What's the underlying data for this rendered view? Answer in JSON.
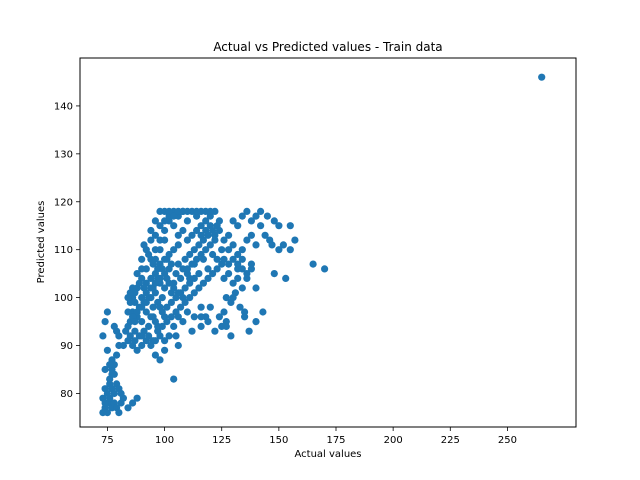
{
  "chart_data": {
    "type": "scatter",
    "title": "Actual vs Predicted values - Train data",
    "xlabel": "Actual values",
    "ylabel": "Predicted values",
    "xlim": [
      63,
      280
    ],
    "ylim": [
      73,
      150
    ],
    "xticks": [
      75,
      100,
      125,
      150,
      175,
      200,
      225,
      250
    ],
    "yticks": [
      80,
      90,
      100,
      110,
      120,
      130,
      140
    ],
    "grid": false,
    "marker_color": "#1f77b4",
    "points": [
      [
        73,
        76
      ],
      [
        74,
        77
      ],
      [
        75,
        76
      ],
      [
        76,
        78
      ],
      [
        77,
        77
      ],
      [
        73,
        79
      ],
      [
        74,
        78
      ],
      [
        76,
        79
      ],
      [
        78,
        78
      ],
      [
        79,
        77
      ],
      [
        80,
        76
      ],
      [
        81,
        78
      ],
      [
        82,
        79
      ],
      [
        84,
        77
      ],
      [
        86,
        78
      ],
      [
        88,
        79
      ],
      [
        74,
        81
      ],
      [
        75,
        80
      ],
      [
        76,
        82
      ],
      [
        77,
        81
      ],
      [
        78,
        80
      ],
      [
        79,
        82
      ],
      [
        80,
        81
      ],
      [
        81,
        80
      ],
      [
        76,
        83
      ],
      [
        77,
        85
      ],
      [
        78,
        84
      ],
      [
        74,
        85
      ],
      [
        75,
        89
      ],
      [
        73,
        92
      ],
      [
        74,
        95
      ],
      [
        75,
        97
      ],
      [
        77,
        87
      ],
      [
        78,
        86
      ],
      [
        79,
        88
      ],
      [
        80,
        90
      ],
      [
        78,
        94
      ],
      [
        79,
        93
      ],
      [
        76,
        86
      ],
      [
        77,
        84
      ],
      [
        84,
        94
      ],
      [
        85,
        95
      ],
      [
        86,
        97
      ],
      [
        87,
        93
      ],
      [
        88,
        96
      ],
      [
        89,
        98
      ],
      [
        90,
        95
      ],
      [
        91,
        99
      ],
      [
        92,
        97
      ],
      [
        93,
        94
      ],
      [
        94,
        100
      ],
      [
        95,
        98
      ],
      [
        96,
        101
      ],
      [
        97,
        99
      ],
      [
        98,
        103
      ],
      [
        99,
        100
      ],
      [
        100,
        102
      ],
      [
        101,
        104
      ],
      [
        102,
        106
      ],
      [
        103,
        101
      ],
      [
        104,
        103
      ],
      [
        105,
        105
      ],
      [
        106,
        107
      ],
      [
        107,
        104
      ],
      [
        108,
        106
      ],
      [
        109,
        108
      ],
      [
        110,
        105
      ],
      [
        111,
        109
      ],
      [
        112,
        107
      ],
      [
        113,
        110
      ],
      [
        114,
        108
      ],
      [
        115,
        111
      ],
      [
        116,
        109
      ],
      [
        117,
        112
      ],
      [
        118,
        110
      ],
      [
        119,
        113
      ],
      [
        120,
        111
      ],
      [
        121,
        114
      ],
      [
        122,
        112
      ],
      [
        123,
        115
      ],
      [
        86,
        100
      ],
      [
        88,
        102
      ],
      [
        90,
        104
      ],
      [
        92,
        106
      ],
      [
        94,
        108
      ],
      [
        96,
        110
      ],
      [
        98,
        112
      ],
      [
        100,
        114
      ],
      [
        102,
        116
      ],
      [
        104,
        118
      ],
      [
        106,
        117
      ],
      [
        108,
        118
      ],
      [
        110,
        116
      ],
      [
        112,
        118
      ],
      [
        114,
        117
      ],
      [
        116,
        115
      ],
      [
        118,
        116
      ],
      [
        120,
        117
      ],
      [
        122,
        118
      ],
      [
        124,
        116
      ],
      [
        87,
        91
      ],
      [
        89,
        92
      ],
      [
        91,
        93
      ],
      [
        93,
        92
      ],
      [
        95,
        91
      ],
      [
        97,
        93
      ],
      [
        99,
        94
      ],
      [
        101,
        95
      ],
      [
        103,
        96
      ],
      [
        105,
        97
      ],
      [
        107,
        98
      ],
      [
        109,
        99
      ],
      [
        111,
        100
      ],
      [
        113,
        101
      ],
      [
        115,
        102
      ],
      [
        117,
        103
      ],
      [
        119,
        104
      ],
      [
        121,
        105
      ],
      [
        123,
        106
      ],
      [
        125,
        107
      ],
      [
        90,
        108
      ],
      [
        92,
        110
      ],
      [
        94,
        112
      ],
      [
        96,
        113
      ],
      [
        98,
        115
      ],
      [
        100,
        116
      ],
      [
        102,
        117
      ],
      [
        104,
        115
      ],
      [
        106,
        113
      ],
      [
        108,
        114
      ],
      [
        88,
        105
      ],
      [
        90,
        106
      ],
      [
        92,
        103
      ],
      [
        94,
        104
      ],
      [
        96,
        105
      ],
      [
        98,
        107
      ],
      [
        100,
        108
      ],
      [
        102,
        109
      ],
      [
        104,
        110
      ],
      [
        106,
        111
      ],
      [
        85,
        99
      ],
      [
        87,
        101
      ],
      [
        89,
        103
      ],
      [
        91,
        102
      ],
      [
        93,
        100
      ],
      [
        95,
        102
      ],
      [
        97,
        104
      ],
      [
        99,
        106
      ],
      [
        101,
        108
      ],
      [
        103,
        107
      ],
      [
        110,
        112
      ],
      [
        112,
        113
      ],
      [
        114,
        114
      ],
      [
        116,
        113
      ],
      [
        118,
        114
      ],
      [
        120,
        115
      ],
      [
        122,
        113
      ],
      [
        124,
        114
      ],
      [
        126,
        112
      ],
      [
        128,
        113
      ],
      [
        126,
        104
      ],
      [
        128,
        105
      ],
      [
        130,
        103
      ],
      [
        132,
        104
      ],
      [
        134,
        102
      ],
      [
        127,
        100
      ],
      [
        129,
        99
      ],
      [
        131,
        101
      ],
      [
        133,
        98
      ],
      [
        135,
        97
      ],
      [
        124,
        96
      ],
      [
        126,
        97
      ],
      [
        125,
        94
      ],
      [
        127,
        95
      ],
      [
        130,
        100
      ],
      [
        132,
        106
      ],
      [
        134,
        108
      ],
      [
        136,
        104
      ],
      [
        138,
        106
      ],
      [
        140,
        102
      ],
      [
        128,
        110
      ],
      [
        130,
        111
      ],
      [
        132,
        109
      ],
      [
        134,
        110
      ],
      [
        136,
        112
      ],
      [
        138,
        113
      ],
      [
        140,
        111
      ],
      [
        142,
        115
      ],
      [
        144,
        113
      ],
      [
        146,
        112
      ],
      [
        130,
        116
      ],
      [
        132,
        115
      ],
      [
        134,
        117
      ],
      [
        136,
        118
      ],
      [
        138,
        116
      ],
      [
        140,
        117
      ],
      [
        142,
        118
      ],
      [
        145,
        117
      ],
      [
        148,
        116
      ],
      [
        150,
        115
      ],
      [
        147,
        111
      ],
      [
        150,
        110
      ],
      [
        152,
        111
      ],
      [
        155,
        110
      ],
      [
        153,
        104
      ],
      [
        148,
        105
      ],
      [
        165,
        107
      ],
      [
        170,
        106
      ],
      [
        157,
        112
      ],
      [
        155,
        115
      ],
      [
        143,
        97
      ],
      [
        140,
        95
      ],
      [
        137,
        93
      ],
      [
        135,
        96
      ],
      [
        127,
        94
      ],
      [
        129,
        92
      ],
      [
        122,
        93
      ],
      [
        119,
        95
      ],
      [
        116,
        94
      ],
      [
        113,
        96
      ],
      [
        110,
        97
      ],
      [
        108,
        95
      ],
      [
        106,
        96
      ],
      [
        104,
        94
      ],
      [
        102,
        92
      ],
      [
        100,
        91
      ],
      [
        98,
        92
      ],
      [
        96,
        91
      ],
      [
        94,
        90
      ],
      [
        92,
        91
      ],
      [
        90,
        90
      ],
      [
        105,
        92
      ],
      [
        112,
        93
      ],
      [
        118,
        96
      ],
      [
        116,
        98
      ],
      [
        106,
        90
      ],
      [
        120,
        98
      ],
      [
        116,
        96
      ],
      [
        100,
        96
      ],
      [
        98,
        98
      ],
      [
        95,
        96
      ],
      [
        97,
        94
      ],
      [
        99,
        97
      ],
      [
        101,
        98
      ],
      [
        103,
        99
      ],
      [
        105,
        100
      ],
      [
        107,
        101
      ],
      [
        109,
        102
      ],
      [
        111,
        103
      ],
      [
        113,
        104
      ],
      [
        88,
        97
      ],
      [
        90,
        98
      ],
      [
        92,
        99
      ],
      [
        94,
        96
      ],
      [
        96,
        95
      ],
      [
        86,
        96
      ],
      [
        84,
        97
      ],
      [
        83,
        93
      ],
      [
        85,
        92
      ],
      [
        87,
        95
      ],
      [
        90,
        100
      ],
      [
        92,
        101
      ],
      [
        94,
        102
      ],
      [
        96,
        103
      ],
      [
        98,
        104
      ],
      [
        100,
        105
      ],
      [
        102,
        103
      ],
      [
        104,
        102
      ],
      [
        106,
        101
      ],
      [
        108,
        100
      ],
      [
        94,
        114
      ],
      [
        96,
        116
      ],
      [
        98,
        118
      ],
      [
        100,
        118
      ],
      [
        102,
        118
      ],
      [
        104,
        117
      ],
      [
        106,
        118
      ],
      [
        108,
        118
      ],
      [
        110,
        118
      ],
      [
        114,
        118
      ],
      [
        116,
        118
      ],
      [
        118,
        118
      ],
      [
        120,
        118
      ],
      [
        100,
        112
      ],
      [
        98,
        110
      ],
      [
        96,
        108
      ],
      [
        97,
        106
      ],
      [
        95,
        107
      ],
      [
        93,
        109
      ],
      [
        91,
        111
      ],
      [
        82,
        90
      ],
      [
        84,
        91
      ],
      [
        86,
        90
      ],
      [
        88,
        89
      ],
      [
        90,
        92
      ],
      [
        80,
        92
      ],
      [
        96,
        88
      ],
      [
        98,
        87
      ],
      [
        100,
        89
      ],
      [
        104,
        83
      ],
      [
        85,
        101
      ],
      [
        87,
        99
      ],
      [
        86,
        102
      ],
      [
        84,
        100
      ],
      [
        110,
        106
      ],
      [
        111,
        104
      ],
      [
        113,
        107
      ],
      [
        115,
        105
      ],
      [
        117,
        108
      ],
      [
        119,
        106
      ],
      [
        121,
        109
      ],
      [
        123,
        108
      ],
      [
        125,
        110
      ],
      [
        126,
        108
      ],
      [
        128,
        107
      ],
      [
        130,
        108
      ],
      [
        132,
        107
      ],
      [
        134,
        106
      ],
      [
        136,
        105
      ],
      [
        138,
        107
      ],
      [
        265,
        146
      ]
    ]
  }
}
